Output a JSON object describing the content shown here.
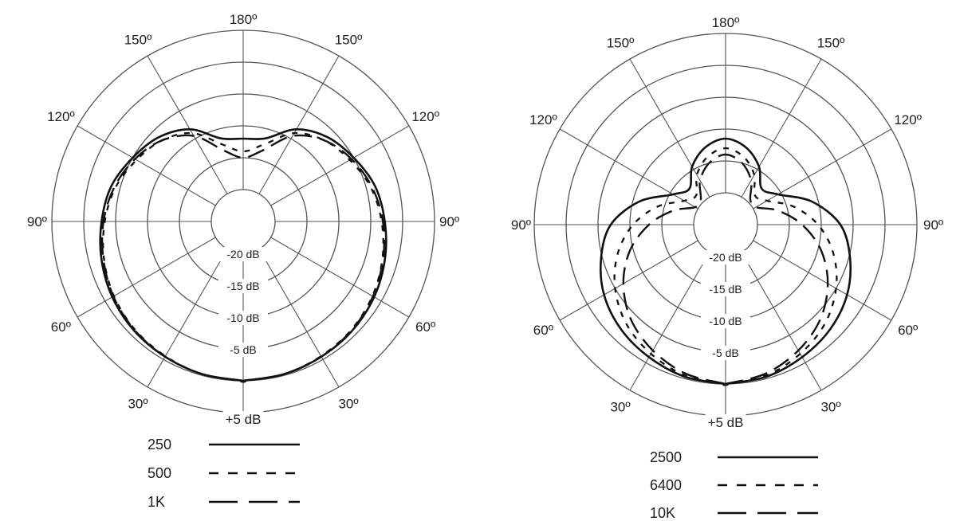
{
  "chart_data": [
    {
      "type": "polar",
      "angle_labels": [
        {
          "angle": 0,
          "text": "+5 dB"
        },
        {
          "angle": 30,
          "text": "30º"
        },
        {
          "angle": -30,
          "text": "30º"
        },
        {
          "angle": 60,
          "text": "60º"
        },
        {
          "angle": -60,
          "text": "60º"
        },
        {
          "angle": 90,
          "text": "90º"
        },
        {
          "angle": -90,
          "text": "90º"
        },
        {
          "angle": 120,
          "text": "120º"
        },
        {
          "angle": -120,
          "text": "120º"
        },
        {
          "angle": 150,
          "text": "150º"
        },
        {
          "angle": -150,
          "text": "150º"
        },
        {
          "angle": 180,
          "text": "180º"
        }
      ],
      "radial_labels": [
        "-20 dB",
        "-15 dB",
        "-10 dB",
        "-5 dB"
      ],
      "rlim": [
        -25,
        5
      ],
      "grid_rings_db": [
        -20,
        -15,
        -10,
        -5,
        0,
        5
      ],
      "legend_position": "bottom",
      "series": [
        {
          "name": "250",
          "line_style": "solid",
          "points": [
            {
              "angle": 0,
              "db": 0
            },
            {
              "angle": 15,
              "db": -0.2
            },
            {
              "angle": 30,
              "db": -0.5
            },
            {
              "angle": 45,
              "db": -0.8
            },
            {
              "angle": 60,
              "db": -1.3
            },
            {
              "angle": 75,
              "db": -2.0
            },
            {
              "angle": 90,
              "db": -2.8
            },
            {
              "angle": 105,
              "db": -3.6
            },
            {
              "angle": 120,
              "db": -5.0
            },
            {
              "angle": 135,
              "db": -6.3
            },
            {
              "angle": 150,
              "db": -8.3
            },
            {
              "angle": 165,
              "db": -11.5
            },
            {
              "angle": 180,
              "db": -12.0
            }
          ]
        },
        {
          "name": "500",
          "line_style": "short-dash",
          "points": [
            {
              "angle": 0,
              "db": 0
            },
            {
              "angle": 15,
              "db": -0.2
            },
            {
              "angle": 30,
              "db": -0.6
            },
            {
              "angle": 45,
              "db": -1.0
            },
            {
              "angle": 60,
              "db": -1.6
            },
            {
              "angle": 75,
              "db": -2.4
            },
            {
              "angle": 90,
              "db": -3.3
            },
            {
              "angle": 105,
              "db": -4.3
            },
            {
              "angle": 120,
              "db": -5.7
            },
            {
              "angle": 135,
              "db": -7.0
            },
            {
              "angle": 150,
              "db": -9.0
            },
            {
              "angle": 165,
              "db": -12.5
            },
            {
              "angle": 180,
              "db": -14.0
            }
          ]
        },
        {
          "name": "1K",
          "line_style": "long-dash",
          "points": [
            {
              "angle": 0,
              "db": 0
            },
            {
              "angle": 15,
              "db": -0.2
            },
            {
              "angle": 30,
              "db": -0.5
            },
            {
              "angle": 45,
              "db": -0.9
            },
            {
              "angle": 60,
              "db": -1.5
            },
            {
              "angle": 75,
              "db": -2.3
            },
            {
              "angle": 90,
              "db": -3.1
            },
            {
              "angle": 105,
              "db": -4.1
            },
            {
              "angle": 120,
              "db": -5.4
            },
            {
              "angle": 135,
              "db": -7.0
            },
            {
              "angle": 150,
              "db": -9.5
            },
            {
              "angle": 165,
              "db": -13.5
            },
            {
              "angle": 180,
              "db": -15.0
            }
          ]
        }
      ]
    },
    {
      "type": "polar",
      "angle_labels": [
        {
          "angle": 0,
          "text": "+5 dB"
        },
        {
          "angle": 30,
          "text": "30º"
        },
        {
          "angle": -30,
          "text": "30º"
        },
        {
          "angle": 60,
          "text": "60º"
        },
        {
          "angle": -60,
          "text": "60º"
        },
        {
          "angle": 90,
          "text": "90º"
        },
        {
          "angle": -90,
          "text": "90º"
        },
        {
          "angle": 120,
          "text": "120º"
        },
        {
          "angle": -120,
          "text": "120º"
        },
        {
          "angle": 150,
          "text": "150º"
        },
        {
          "angle": -150,
          "text": "150º"
        },
        {
          "angle": 180,
          "text": "180º"
        }
      ],
      "radial_labels": [
        "-20 dB",
        "-15 dB",
        "-10 dB",
        "-5 dB"
      ],
      "rlim": [
        -25,
        5
      ],
      "grid_rings_db": [
        -20,
        -15,
        -10,
        -5,
        0,
        5
      ],
      "legend_position": "bottom",
      "series": [
        {
          "name": "2500",
          "line_style": "solid",
          "points": [
            {
              "angle": 0,
              "db": 0
            },
            {
              "angle": 15,
              "db": -0.3
            },
            {
              "angle": 30,
              "db": -1.0
            },
            {
              "angle": 45,
              "db": -1.8
            },
            {
              "angle": 60,
              "db": -3.0
            },
            {
              "angle": 75,
              "db": -4.8
            },
            {
              "angle": 90,
              "db": -7.0
            },
            {
              "angle": 105,
              "db": -11.0
            },
            {
              "angle": 120,
              "db": -15.5
            },
            {
              "angle": 135,
              "db": -17.0
            },
            {
              "angle": 150,
              "db": -14.5
            },
            {
              "angle": 165,
              "db": -12.5
            },
            {
              "angle": 180,
              "db": -11.5
            }
          ]
        },
        {
          "name": "6400",
          "line_style": "short-dash",
          "points": [
            {
              "angle": 0,
              "db": 0
            },
            {
              "angle": 15,
              "db": -0.5
            },
            {
              "angle": 30,
              "db": -1.6
            },
            {
              "angle": 45,
              "db": -3.0
            },
            {
              "angle": 60,
              "db": -5.0
            },
            {
              "angle": 75,
              "db": -7.5
            },
            {
              "angle": 90,
              "db": -10.5
            },
            {
              "angle": 105,
              "db": -14.0
            },
            {
              "angle": 120,
              "db": -17.5
            },
            {
              "angle": 135,
              "db": -18.5
            },
            {
              "angle": 150,
              "db": -16.0
            },
            {
              "angle": 165,
              "db": -14.0
            },
            {
              "angle": 180,
              "db": -13.0
            }
          ]
        },
        {
          "name": "10K",
          "line_style": "long-dash",
          "points": [
            {
              "angle": 0,
              "db": 0
            },
            {
              "angle": 15,
              "db": -0.8
            },
            {
              "angle": 30,
              "db": -2.2
            },
            {
              "angle": 45,
              "db": -4.0
            },
            {
              "angle": 60,
              "db": -6.5
            },
            {
              "angle": 75,
              "db": -9.5
            },
            {
              "angle": 90,
              "db": -13.0
            },
            {
              "angle": 105,
              "db": -16.5
            },
            {
              "angle": 120,
              "db": -19.5
            },
            {
              "angle": 135,
              "db": -19.5
            },
            {
              "angle": 150,
              "db": -17.0
            },
            {
              "angle": 165,
              "db": -15.0
            },
            {
              "angle": 180,
              "db": -14.0
            }
          ]
        }
      ]
    }
  ]
}
